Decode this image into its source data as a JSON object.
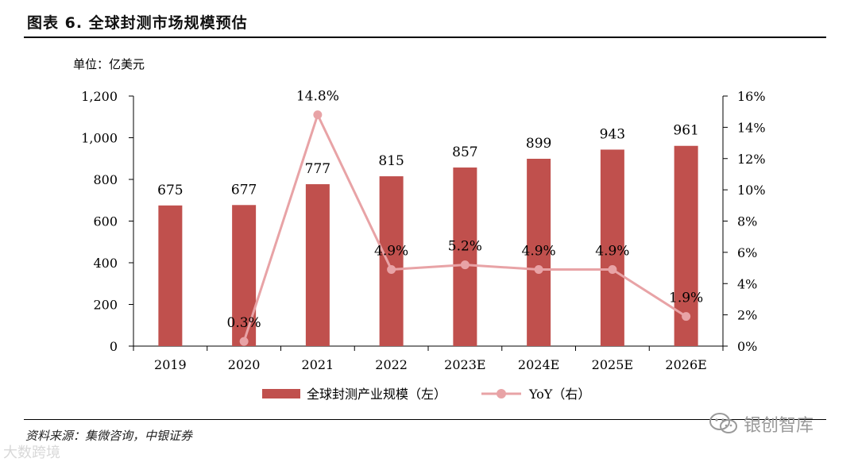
{
  "header": {
    "title": "图表 6.  全球封测市场规模预估"
  },
  "unit_label": "单位：亿美元",
  "source": "资料来源：集微咨询，中银证券",
  "watermark_left": "大数跨境",
  "watermark_right": "银创智库",
  "colors": {
    "bar": "#c0504d",
    "line": "#e8a3a6",
    "axis": "#000000"
  },
  "chart_data": {
    "type": "bar",
    "categories": [
      "2019",
      "2020",
      "2021",
      "2022",
      "2023E",
      "2024E",
      "2025E",
      "2026E"
    ],
    "series": [
      {
        "name": "全球封测产业规模（左）",
        "type": "bar",
        "axis": "left",
        "values": [
          675,
          677,
          777,
          815,
          857,
          899,
          943,
          961
        ],
        "labels": [
          "675",
          "677",
          "777",
          "815",
          "857",
          "899",
          "943",
          "961"
        ]
      },
      {
        "name": "YoY（右）",
        "type": "line",
        "axis": "right",
        "values": [
          null,
          0.3,
          14.8,
          4.9,
          5.2,
          4.9,
          4.9,
          1.9
        ],
        "labels": [
          "",
          "0.3%",
          "14.8%",
          "4.9%",
          "5.2%",
          "4.9%",
          "4.9%",
          "1.9%"
        ]
      }
    ],
    "y_left": {
      "lim": [
        0,
        1200
      ],
      "ticks": [
        "0",
        "200",
        "400",
        "600",
        "800",
        "1,000",
        "1,200"
      ],
      "tick_values": [
        0,
        200,
        400,
        600,
        800,
        1000,
        1200
      ]
    },
    "y_right": {
      "lim": [
        0,
        16
      ],
      "ticks": [
        "0%",
        "2%",
        "4%",
        "6%",
        "8%",
        "10%",
        "12%",
        "14%",
        "16%"
      ],
      "tick_values": [
        0,
        2,
        4,
        6,
        8,
        10,
        12,
        14,
        16
      ]
    },
    "legend": "bottom",
    "grid": false
  }
}
